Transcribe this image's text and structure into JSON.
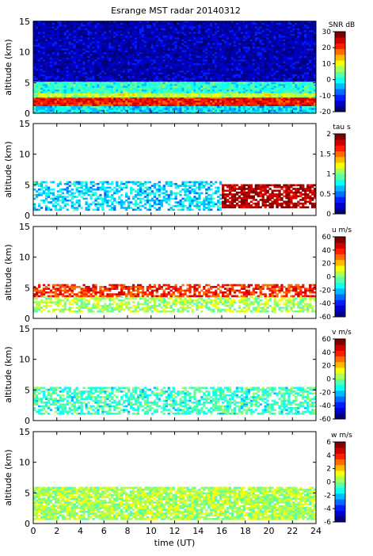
{
  "figure": {
    "title": "Esrange MST radar 20140312"
  },
  "chart_data": [
    {
      "type": "heatmap",
      "panel": "snr",
      "xlabel": "",
      "ylabel": "altitude (km)",
      "xlim": [
        0,
        24
      ],
      "ylim": [
        0,
        15
      ],
      "yticks": [
        0,
        5,
        10,
        15
      ],
      "xticks": [
        0,
        2,
        4,
        6,
        8,
        10,
        12,
        14,
        16,
        18,
        20,
        22,
        24
      ],
      "show_xtick_labels": false,
      "colorbar": {
        "title": "SNR dB",
        "min": -20,
        "max": 30,
        "ticks": [
          30,
          20,
          10,
          0,
          -10,
          -20
        ],
        "colormap": "jet",
        "levels": 14
      },
      "layers": [
        {
          "alt_range": [
            0,
            1.2
          ],
          "value": -2,
          "coverage": 1.0
        },
        {
          "alt_range": [
            1.2,
            2.6
          ],
          "value": 22,
          "coverage": 1.0
        },
        {
          "alt_range": [
            2.6,
            3.3
          ],
          "value": 8,
          "coverage": 1.0
        },
        {
          "alt_range": [
            3.3,
            5.2
          ],
          "value": 1,
          "coverage": 1.0
        },
        {
          "alt_range": [
            5.2,
            15
          ],
          "value": -16,
          "coverage": 1.0
        }
      ]
    },
    {
      "type": "heatmap",
      "panel": "tau",
      "xlabel": "",
      "ylabel": "altitude (km)",
      "xlim": [
        0,
        24
      ],
      "ylim": [
        0,
        15
      ],
      "yticks": [
        0,
        5,
        10,
        15
      ],
      "xticks": [
        0,
        2,
        4,
        6,
        8,
        10,
        12,
        14,
        16,
        18,
        20,
        22,
        24
      ],
      "show_xtick_labels": false,
      "colorbar": {
        "title": "tau s",
        "min": 0,
        "max": 2,
        "ticks": [
          2,
          1.5,
          1,
          0.5,
          0
        ],
        "colormap": "jet",
        "levels": 14
      },
      "layers": [
        {
          "alt_range": [
            0.8,
            5.5
          ],
          "value": 0.7,
          "coverage": 0.55,
          "time_range": [
            0,
            16
          ]
        },
        {
          "alt_range": [
            1.2,
            5.0
          ],
          "value": 1.85,
          "coverage": 0.75,
          "time_range": [
            16,
            24
          ]
        }
      ]
    },
    {
      "type": "heatmap",
      "panel": "u",
      "xlabel": "",
      "ylabel": "altitude (km)",
      "xlim": [
        0,
        24
      ],
      "ylim": [
        0,
        15
      ],
      "yticks": [
        0,
        5,
        10,
        15
      ],
      "xticks": [
        0,
        2,
        4,
        6,
        8,
        10,
        12,
        14,
        16,
        18,
        20,
        22,
        24
      ],
      "show_xtick_labels": false,
      "colorbar": {
        "title": "u m/s",
        "min": -60,
        "max": 60,
        "ticks": [
          60,
          40,
          20,
          0,
          -20,
          -40,
          -60
        ],
        "colormap": "jet",
        "levels": 14
      },
      "layers": [
        {
          "alt_range": [
            1.0,
            3.5
          ],
          "value": 5,
          "coverage": 0.6
        },
        {
          "alt_range": [
            3.5,
            5.5
          ],
          "value": 38,
          "coverage": 0.65
        }
      ]
    },
    {
      "type": "heatmap",
      "panel": "v",
      "xlabel": "",
      "ylabel": "altitude (km)",
      "xlim": [
        0,
        24
      ],
      "ylim": [
        0,
        15
      ],
      "yticks": [
        0,
        5,
        10,
        15
      ],
      "xticks": [
        0,
        2,
        4,
        6,
        8,
        10,
        12,
        14,
        16,
        18,
        20,
        22,
        24
      ],
      "show_xtick_labels": false,
      "colorbar": {
        "title": "v m/s",
        "min": -60,
        "max": 60,
        "ticks": [
          60,
          40,
          20,
          0,
          -20,
          -40,
          -60
        ],
        "colormap": "jet",
        "levels": 14
      },
      "layers": [
        {
          "alt_range": [
            1.0,
            5.5
          ],
          "value": -8,
          "coverage": 0.6
        }
      ]
    },
    {
      "type": "heatmap",
      "panel": "w",
      "xlabel": "time (UT)",
      "ylabel": "altitude (km)",
      "xlim": [
        0,
        24
      ],
      "ylim": [
        0,
        15
      ],
      "yticks": [
        0,
        5,
        10,
        15
      ],
      "xticks": [
        0,
        2,
        4,
        6,
        8,
        10,
        12,
        14,
        16,
        18,
        20,
        22,
        24
      ],
      "show_xtick_labels": true,
      "colorbar": {
        "title": "w m/s",
        "min": -6,
        "max": 6,
        "ticks": [
          6,
          4,
          2,
          0,
          -2,
          -4,
          -6
        ],
        "colormap": "jet",
        "levels": 14
      },
      "layers": [
        {
          "alt_range": [
            0.6,
            5.8
          ],
          "value": 0.5,
          "coverage": 0.85
        }
      ]
    }
  ]
}
